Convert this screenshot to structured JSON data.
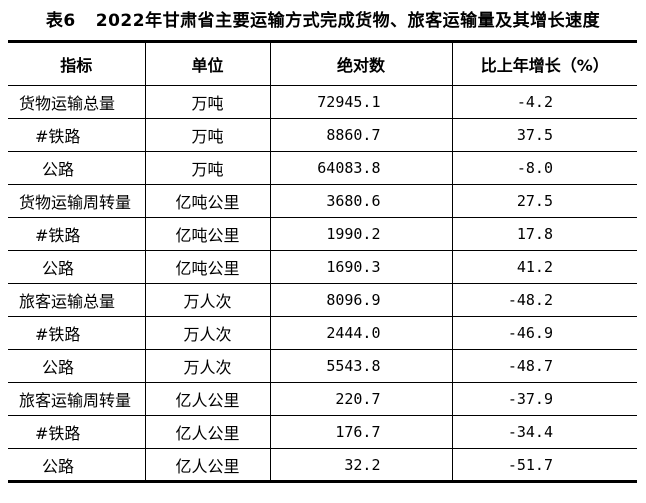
{
  "page": {
    "background_color": "#ffffff",
    "text_color": "#000000",
    "border_color": "#000000"
  },
  "caption": {
    "table_number": "表6",
    "title": "2022年甘肃省主要运输方式完成货物、旅客运输量及其增长速度"
  },
  "table": {
    "headers": [
      "指标",
      "单位",
      "绝对数",
      "比上年增长（%）"
    ],
    "rows": [
      {
        "indicator": "货物运输总量",
        "unit": "万吨",
        "absolute": "72945.1",
        "growth": "-4.2"
      },
      {
        "indicator": "#铁路",
        "unit": "万吨",
        "absolute": "8860.7",
        "growth": "37.5"
      },
      {
        "indicator": "公路",
        "unit": "万吨",
        "absolute": "64083.8",
        "growth": "-8.0"
      },
      {
        "indicator": "货物运输周转量",
        "unit": "亿吨公里",
        "absolute": "3680.6",
        "growth": "27.5"
      },
      {
        "indicator": "#铁路",
        "unit": "亿吨公里",
        "absolute": "1990.2",
        "growth": "17.8"
      },
      {
        "indicator": "公路",
        "unit": "亿吨公里",
        "absolute": "1690.3",
        "growth": "41.2"
      },
      {
        "indicator": "旅客运输总量",
        "unit": "万人次",
        "absolute": "8096.9",
        "growth": "-48.2"
      },
      {
        "indicator": "#铁路",
        "unit": "万人次",
        "absolute": "2444.0",
        "growth": "-46.9"
      },
      {
        "indicator": "公路",
        "unit": "万人次",
        "absolute": "5543.8",
        "growth": "-48.7"
      },
      {
        "indicator": "旅客运输周转量",
        "unit": "亿人公里",
        "absolute": "220.7",
        "growth": "-37.9"
      },
      {
        "indicator": "#铁路",
        "unit": "亿人公里",
        "absolute": "176.7",
        "growth": "-34.4"
      },
      {
        "indicator": "公路",
        "unit": "亿人公里",
        "absolute": "32.2",
        "growth": "-51.7"
      }
    ]
  }
}
